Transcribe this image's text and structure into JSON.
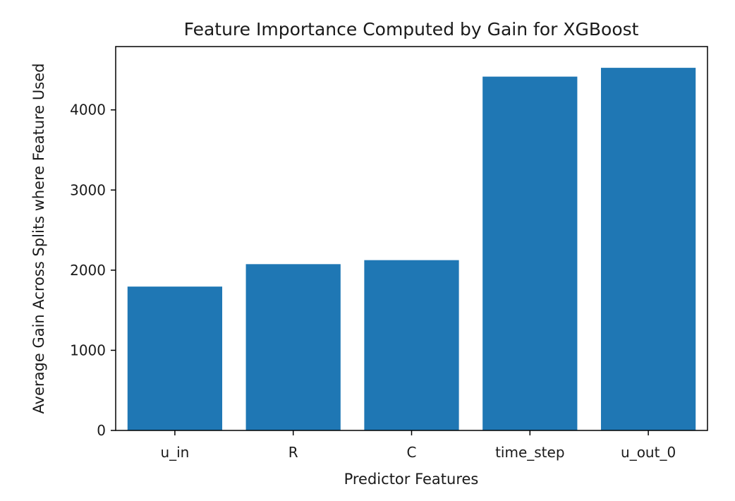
{
  "chart_data": {
    "type": "bar",
    "title": "Feature Importance Computed by Gain for XGBoost",
    "xlabel": "Predictor Features",
    "ylabel": "Average Gain Across Splits where Feature Used",
    "categories": [
      "u_in",
      "R",
      "C",
      "time_step",
      "u_out_0"
    ],
    "values": [
      1795,
      2075,
      2125,
      4415,
      4525
    ],
    "ylim": [
      0,
      4790
    ],
    "yticks": [
      0,
      1000,
      2000,
      3000,
      4000
    ],
    "grid": false,
    "legend": "none",
    "bar_color": "#1f77b4"
  }
}
